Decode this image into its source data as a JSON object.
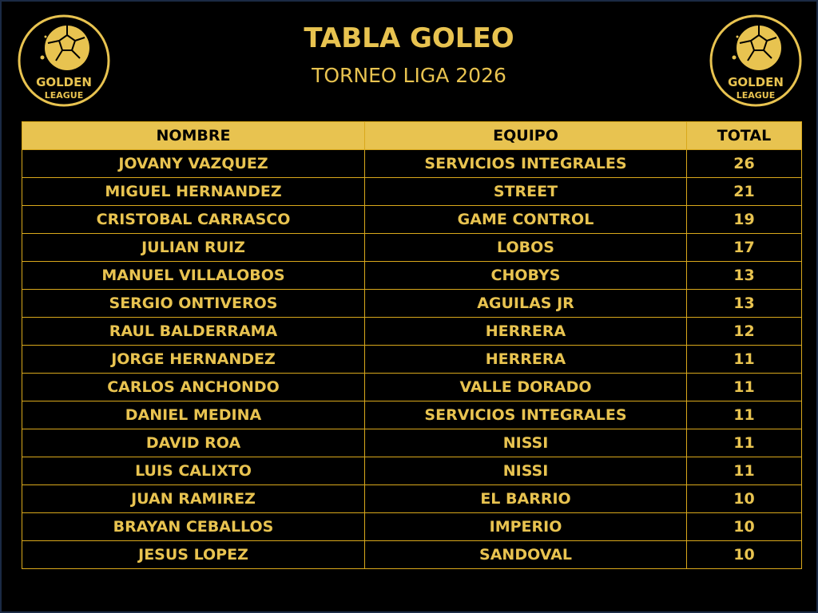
{
  "header": {
    "title": "TABLA GOLEO",
    "subtitle": "TORNEO LIGA 2026",
    "logo_text": "GOLDEN LEAGUE"
  },
  "colors": {
    "gold": "#e8c350",
    "background": "#000000"
  },
  "table": {
    "columns": [
      "NOMBRE",
      "EQUIPO",
      "TOTAL"
    ],
    "rows": [
      [
        "JOVANY VAZQUEZ",
        "SERVICIOS INTEGRALES",
        "26"
      ],
      [
        "MIGUEL HERNANDEZ",
        "STREET",
        "21"
      ],
      [
        "CRISTOBAL CARRASCO",
        "GAME CONTROL",
        "19"
      ],
      [
        "JULIAN RUIZ",
        "LOBOS",
        "17"
      ],
      [
        "MANUEL VILLALOBOS",
        "CHOBYS",
        "13"
      ],
      [
        "SERGIO ONTIVEROS",
        "AGUILAS JR",
        "13"
      ],
      [
        "RAUL BALDERRAMA",
        "HERRERA",
        "12"
      ],
      [
        "JORGE HERNANDEZ",
        "HERRERA",
        "11"
      ],
      [
        "CARLOS ANCHONDO",
        "VALLE DORADO",
        "11"
      ],
      [
        "DANIEL MEDINA",
        "SERVICIOS INTEGRALES",
        "11"
      ],
      [
        "DAVID ROA",
        "NISSI",
        "11"
      ],
      [
        "LUIS CALIXTO",
        "NISSI",
        "11"
      ],
      [
        "JUAN RAMIREZ",
        "EL BARRIO",
        "10"
      ],
      [
        "BRAYAN CEBALLOS",
        "IMPERIO",
        "10"
      ],
      [
        "JESUS LOPEZ",
        "SANDOVAL",
        "10"
      ]
    ]
  }
}
